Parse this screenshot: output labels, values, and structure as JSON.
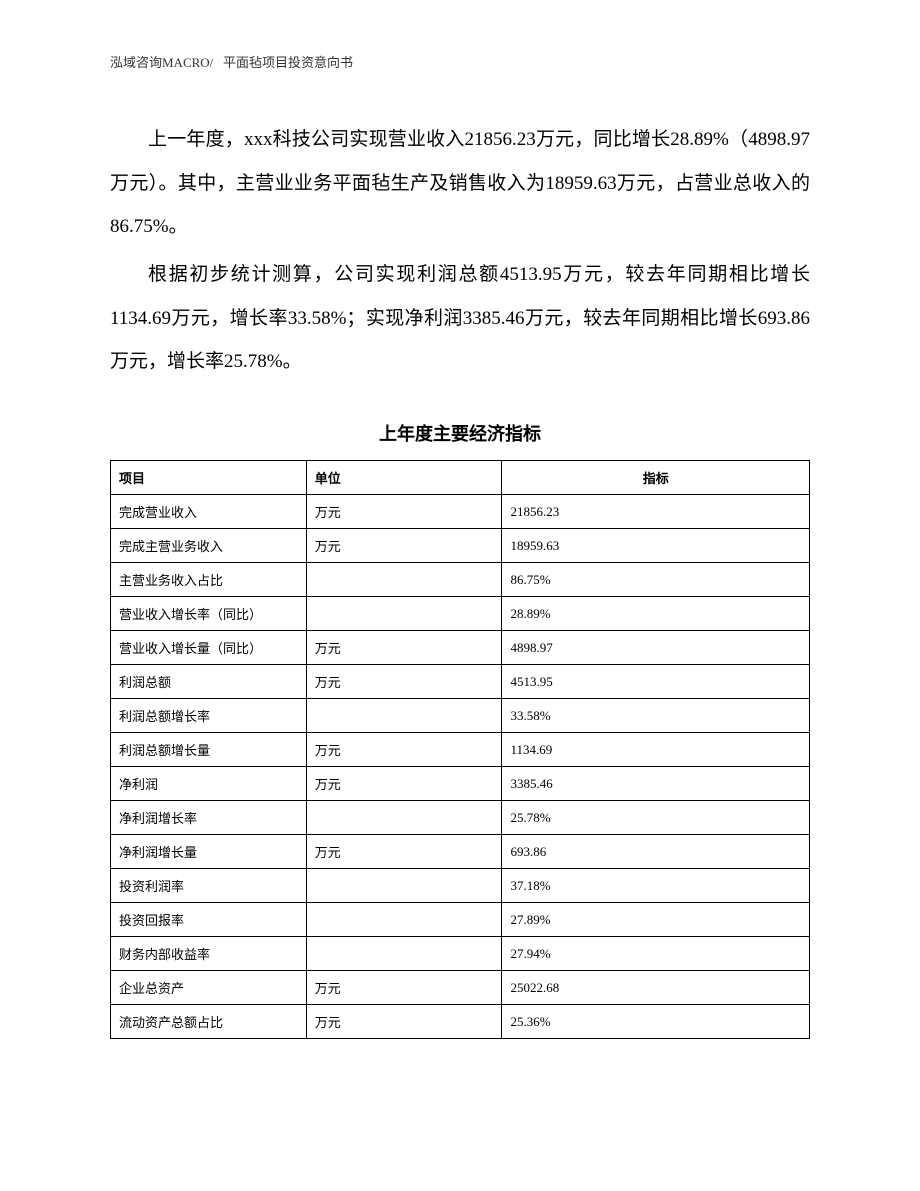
{
  "header": {
    "source": "泓域咨询MACRO/",
    "title": "平面毡项目投资意向书"
  },
  "paragraphs": {
    "p1": "上一年度，xxx科技公司实现营业收入21856.23万元，同比增长28.89%（4898.97万元）。其中，主营业业务平面毡生产及销售收入为18959.63万元，占营业总收入的86.75%。",
    "p2": "根据初步统计测算，公司实现利润总额4513.95万元，较去年同期相比增长1134.69万元，增长率33.58%；实现净利润3385.46万元，较去年同期相比增长693.86万元，增长率25.78%。"
  },
  "table": {
    "title": "上年度主要经济指标",
    "headers": {
      "item": "项目",
      "unit": "单位",
      "index": "指标"
    },
    "rows": [
      {
        "item": "完成营业收入",
        "unit": "万元",
        "index": "21856.23"
      },
      {
        "item": "完成主营业务收入",
        "unit": "万元",
        "index": "18959.63"
      },
      {
        "item": "主营业务收入占比",
        "unit": "",
        "index": "86.75%"
      },
      {
        "item": "营业收入增长率（同比）",
        "unit": "",
        "index": "28.89%"
      },
      {
        "item": "营业收入增长量（同比）",
        "unit": "万元",
        "index": "4898.97"
      },
      {
        "item": "利润总额",
        "unit": "万元",
        "index": "4513.95"
      },
      {
        "item": "利润总额增长率",
        "unit": "",
        "index": "33.58%"
      },
      {
        "item": "利润总额增长量",
        "unit": "万元",
        "index": "1134.69"
      },
      {
        "item": "净利润",
        "unit": "万元",
        "index": "3385.46"
      },
      {
        "item": "净利润增长率",
        "unit": "",
        "index": "25.78%"
      },
      {
        "item": "净利润增长量",
        "unit": "万元",
        "index": "693.86"
      },
      {
        "item": "投资利润率",
        "unit": "",
        "index": "37.18%"
      },
      {
        "item": "投资回报率",
        "unit": "",
        "index": "27.89%"
      },
      {
        "item": "财务内部收益率",
        "unit": "",
        "index": "27.94%"
      },
      {
        "item": "企业总资产",
        "unit": "万元",
        "index": "25022.68"
      },
      {
        "item": "流动资产总额占比",
        "unit": "万元",
        "index": "25.36%"
      }
    ]
  }
}
